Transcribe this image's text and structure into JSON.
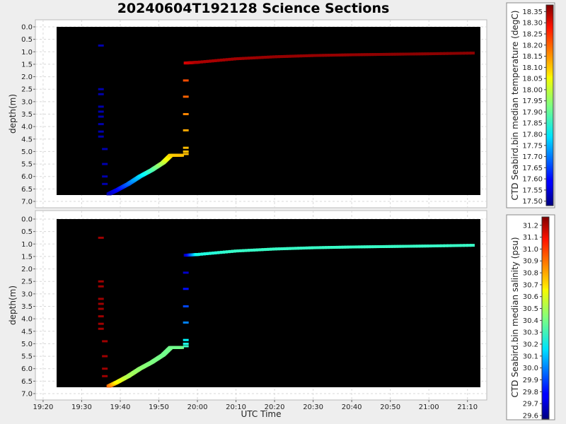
{
  "title": "20240604T192128 Science Sections",
  "chart_data": [
    {
      "type": "scatter",
      "panel": "top",
      "xlabel": "",
      "ylabel": "depth(m)",
      "ylim": [
        7.0,
        0.0
      ],
      "yticks": [
        "0.0",
        "0.5",
        "1.0",
        "1.5",
        "2.0",
        "2.5",
        "3.0",
        "3.5",
        "4.0",
        "4.5",
        "5.0",
        "5.5",
        "6.0",
        "6.5",
        "7.0"
      ],
      "colorbar": {
        "label": "CTD Seabird.bin median temperature (degC)",
        "range": [
          17.48,
          18.38
        ],
        "ticks": [
          "17.50",
          "17.55",
          "17.60",
          "17.65",
          "17.70",
          "17.75",
          "17.80",
          "17.85",
          "17.90",
          "17.95",
          "18.00",
          "18.05",
          "18.10",
          "18.15",
          "18.20",
          "18.25",
          "18.30",
          "18.35"
        ]
      },
      "background": "#000000",
      "grid": true,
      "points": [
        {
          "t": "19:35:00",
          "depth": 0.75,
          "v": 17.52
        },
        {
          "t": "19:35:00",
          "depth": 2.5,
          "v": 17.52
        },
        {
          "t": "19:35:00",
          "depth": 2.7,
          "v": 17.52
        },
        {
          "t": "19:35:00",
          "depth": 3.2,
          "v": 17.52
        },
        {
          "t": "19:35:00",
          "depth": 3.4,
          "v": 17.52
        },
        {
          "t": "19:35:00",
          "depth": 3.6,
          "v": 17.52
        },
        {
          "t": "19:35:00",
          "depth": 3.9,
          "v": 17.52
        },
        {
          "t": "19:35:00",
          "depth": 4.2,
          "v": 17.52
        },
        {
          "t": "19:35:00",
          "depth": 4.4,
          "v": 17.52
        },
        {
          "t": "19:36:00",
          "depth": 4.9,
          "v": 17.52
        },
        {
          "t": "19:36:00",
          "depth": 5.5,
          "v": 17.52
        },
        {
          "t": "19:36:00",
          "depth": 6.0,
          "v": 17.52
        },
        {
          "t": "19:36:00",
          "depth": 6.3,
          "v": 17.52
        },
        {
          "t": "19:57:00",
          "depth": 2.15,
          "v": 18.2
        },
        {
          "t": "19:57:00",
          "depth": 2.8,
          "v": 18.18
        },
        {
          "t": "19:57:00",
          "depth": 3.5,
          "v": 18.15
        },
        {
          "t": "19:57:00",
          "depth": 4.15,
          "v": 18.12
        },
        {
          "t": "19:57:00",
          "depth": 4.85,
          "v": 18.1
        },
        {
          "t": "19:57:00",
          "depth": 5.0,
          "v": 18.1
        },
        {
          "t": "19:57:00",
          "depth": 5.1,
          "v": 18.1
        }
      ],
      "paths": [
        {
          "name": "",
          "t": [
            "19:37:00",
            "19:39:00",
            "19:42:00",
            "19:45:00",
            "19:48:00",
            "19:51:00",
            "19:53:00",
            "19:56:00"
          ],
          "depth": [
            6.7,
            6.55,
            6.3,
            6.0,
            5.75,
            5.45,
            5.15,
            5.15
          ],
          "v": [
            17.52,
            17.58,
            17.68,
            17.78,
            17.88,
            17.98,
            18.08,
            18.1
          ]
        },
        {
          "name": "",
          "t": [
            "19:57:00",
            "20:00:00",
            "20:10:00",
            "20:20:00",
            "20:30:00",
            "20:40:00",
            "20:50:00",
            "21:00:00",
            "21:12:00"
          ],
          "depth": [
            1.45,
            1.42,
            1.28,
            1.2,
            1.15,
            1.12,
            1.1,
            1.08,
            1.05
          ],
          "v": [
            18.3,
            18.34,
            18.35,
            18.36,
            18.36,
            18.36,
            18.37,
            18.37,
            18.37
          ]
        }
      ]
    },
    {
      "type": "scatter",
      "panel": "bottom",
      "xlabel": "UTC Time",
      "ylabel": "depth(m)",
      "ylim": [
        7.0,
        0.0
      ],
      "yticks": [
        "0.0",
        "0.5",
        "1.0",
        "1.5",
        "2.0",
        "2.5",
        "3.0",
        "3.5",
        "4.0",
        "4.5",
        "5.0",
        "5.5",
        "6.0",
        "6.5",
        "7.0"
      ],
      "xticks": [
        "19:20",
        "19:30",
        "19:40",
        "19:50",
        "20:00",
        "20:10",
        "20:20",
        "20:30",
        "20:40",
        "20:50",
        "21:00",
        "21:10"
      ],
      "colorbar": {
        "label": "CTD Seabird.bin median salinity (psu)",
        "range": [
          29.57,
          31.27
        ],
        "ticks": [
          "29.6",
          "29.7",
          "29.8",
          "29.9",
          "30.0",
          "30.1",
          "30.2",
          "30.3",
          "30.4",
          "30.5",
          "30.6",
          "30.7",
          "30.8",
          "30.9",
          "31.0",
          "31.1",
          "31.2"
        ]
      },
      "background": "#000000",
      "grid": true,
      "points": [
        {
          "t": "19:35:00",
          "depth": 0.75,
          "v": 31.22
        },
        {
          "t": "19:35:00",
          "depth": 2.5,
          "v": 31.22
        },
        {
          "t": "19:35:00",
          "depth": 2.7,
          "v": 31.22
        },
        {
          "t": "19:35:00",
          "depth": 3.2,
          "v": 31.22
        },
        {
          "t": "19:35:00",
          "depth": 3.4,
          "v": 31.22
        },
        {
          "t": "19:35:00",
          "depth": 3.6,
          "v": 31.22
        },
        {
          "t": "19:35:00",
          "depth": 3.9,
          "v": 31.22
        },
        {
          "t": "19:35:00",
          "depth": 4.2,
          "v": 31.22
        },
        {
          "t": "19:35:00",
          "depth": 4.4,
          "v": 31.22
        },
        {
          "t": "19:36:00",
          "depth": 4.9,
          "v": 31.22
        },
        {
          "t": "19:36:00",
          "depth": 5.5,
          "v": 31.22
        },
        {
          "t": "19:36:00",
          "depth": 6.0,
          "v": 31.22
        },
        {
          "t": "19:36:00",
          "depth": 6.3,
          "v": 31.22
        },
        {
          "t": "19:57:00",
          "depth": 2.15,
          "v": 29.7
        },
        {
          "t": "19:57:00",
          "depth": 2.8,
          "v": 29.8
        },
        {
          "t": "19:57:00",
          "depth": 3.5,
          "v": 29.9
        },
        {
          "t": "19:57:00",
          "depth": 4.15,
          "v": 30.0
        },
        {
          "t": "19:57:00",
          "depth": 4.85,
          "v": 30.2
        },
        {
          "t": "19:57:00",
          "depth": 5.0,
          "v": 30.25
        },
        {
          "t": "19:57:00",
          "depth": 5.1,
          "v": 30.3
        }
      ],
      "paths": [
        {
          "name": "",
          "t": [
            "19:37:00",
            "19:39:00",
            "19:42:00",
            "19:45:00",
            "19:48:00",
            "19:51:00",
            "19:53:00",
            "19:56:00"
          ],
          "depth": [
            6.7,
            6.55,
            6.3,
            6.0,
            5.75,
            5.45,
            5.15,
            5.15
          ],
          "v": [
            30.9,
            30.65,
            30.5,
            30.45,
            30.42,
            30.4,
            30.4,
            30.4
          ]
        },
        {
          "name": "",
          "t": [
            "19:57:00",
            "20:00:00",
            "20:10:00",
            "20:20:00",
            "20:30:00",
            "20:40:00",
            "20:50:00",
            "21:00:00",
            "21:12:00"
          ],
          "depth": [
            1.45,
            1.42,
            1.28,
            1.2,
            1.15,
            1.12,
            1.1,
            1.08,
            1.05
          ],
          "v": [
            29.65,
            30.25,
            30.3,
            30.3,
            30.3,
            30.3,
            30.3,
            30.3,
            30.3
          ]
        }
      ]
    }
  ]
}
